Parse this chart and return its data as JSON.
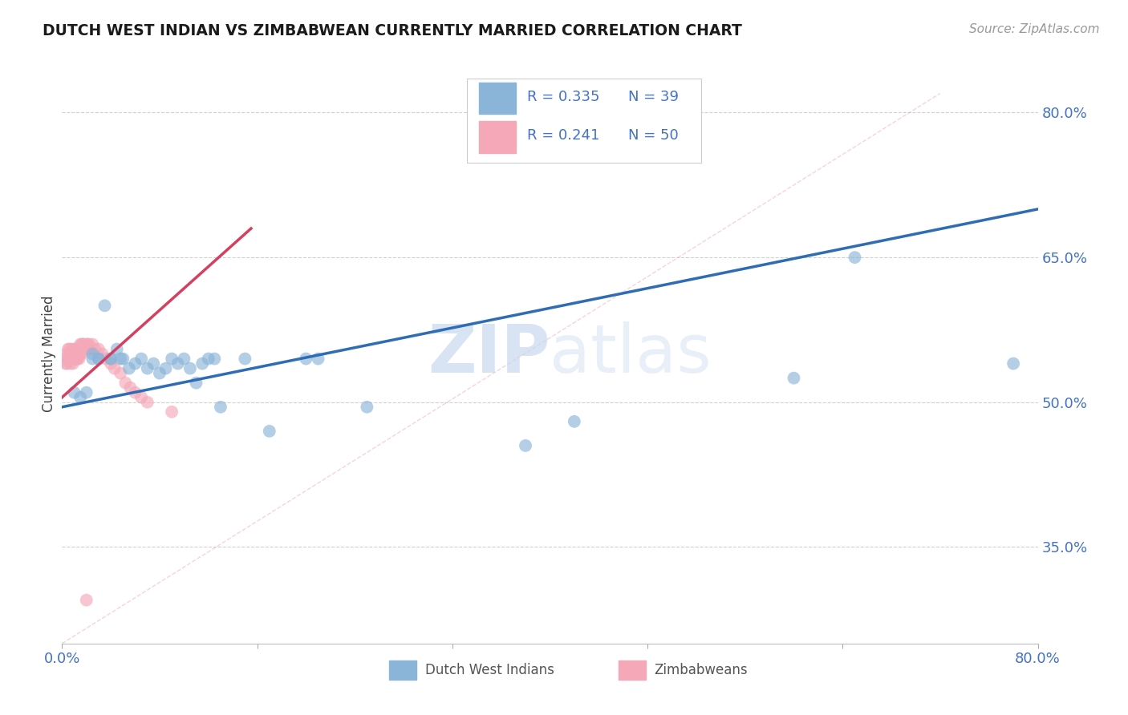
{
  "title": "DUTCH WEST INDIAN VS ZIMBABWEAN CURRENTLY MARRIED CORRELATION CHART",
  "source": "Source: ZipAtlas.com",
  "ylabel": "Currently Married",
  "xlim": [
    0.0,
    0.8
  ],
  "ylim": [
    0.25,
    0.85
  ],
  "yticks": [
    0.35,
    0.5,
    0.65,
    0.8
  ],
  "ytick_labels": [
    "35.0%",
    "50.0%",
    "65.0%",
    "80.0%"
  ],
  "xticks": [
    0.0,
    0.16,
    0.32,
    0.48,
    0.64,
    0.8
  ],
  "title_color": "#1a1a1a",
  "source_color": "#999999",
  "axis_tick_color": "#4472c4",
  "blue_color": "#8ab4d8",
  "pink_color": "#f4a8b8",
  "blue_line_color": "#2e6db4",
  "pink_line_color": "#d44060",
  "legend_blue_R": "R = 0.335",
  "legend_blue_N": "N = 39",
  "legend_pink_R": "R = 0.241",
  "legend_pink_N": "N = 50",
  "blue_scatter_x": [
    0.01,
    0.015,
    0.02,
    0.025,
    0.025,
    0.03,
    0.03,
    0.035,
    0.04,
    0.04,
    0.045,
    0.048,
    0.05,
    0.055,
    0.06,
    0.065,
    0.07,
    0.075,
    0.08,
    0.085,
    0.09,
    0.095,
    0.1,
    0.105,
    0.11,
    0.115,
    0.12,
    0.125,
    0.13,
    0.15,
    0.17,
    0.2,
    0.21,
    0.25,
    0.38,
    0.42,
    0.6,
    0.65,
    0.78
  ],
  "blue_scatter_y": [
    0.51,
    0.505,
    0.51,
    0.55,
    0.545,
    0.545,
    0.545,
    0.6,
    0.545,
    0.545,
    0.555,
    0.545,
    0.545,
    0.535,
    0.54,
    0.545,
    0.535,
    0.54,
    0.53,
    0.535,
    0.545,
    0.54,
    0.545,
    0.535,
    0.52,
    0.54,
    0.545,
    0.545,
    0.495,
    0.545,
    0.47,
    0.545,
    0.545,
    0.495,
    0.455,
    0.48,
    0.525,
    0.65,
    0.54
  ],
  "pink_scatter_x": [
    0.002,
    0.003,
    0.004,
    0.004,
    0.005,
    0.005,
    0.006,
    0.006,
    0.007,
    0.007,
    0.008,
    0.008,
    0.009,
    0.009,
    0.01,
    0.01,
    0.011,
    0.011,
    0.012,
    0.012,
    0.013,
    0.013,
    0.014,
    0.014,
    0.015,
    0.015,
    0.016,
    0.016,
    0.017,
    0.018,
    0.019,
    0.02,
    0.021,
    0.022,
    0.023,
    0.025,
    0.027,
    0.03,
    0.033,
    0.036,
    0.04,
    0.043,
    0.048,
    0.052,
    0.056,
    0.06,
    0.065,
    0.07,
    0.09,
    0.02
  ],
  "pink_scatter_y": [
    0.545,
    0.54,
    0.55,
    0.54,
    0.555,
    0.545,
    0.555,
    0.545,
    0.55,
    0.54,
    0.555,
    0.545,
    0.55,
    0.54,
    0.555,
    0.545,
    0.555,
    0.545,
    0.555,
    0.545,
    0.555,
    0.545,
    0.555,
    0.545,
    0.56,
    0.55,
    0.56,
    0.55,
    0.56,
    0.56,
    0.555,
    0.56,
    0.56,
    0.56,
    0.555,
    0.56,
    0.555,
    0.555,
    0.55,
    0.545,
    0.54,
    0.535,
    0.53,
    0.52,
    0.515,
    0.51,
    0.505,
    0.5,
    0.49,
    0.295
  ],
  "blue_line_x": [
    0.0,
    0.8
  ],
  "blue_line_y": [
    0.495,
    0.7
  ],
  "pink_line_x": [
    0.0,
    0.155
  ],
  "pink_line_y": [
    0.505,
    0.68
  ],
  "diag_line_x": [
    0.0,
    0.72
  ],
  "diag_line_y": [
    0.25,
    0.82
  ],
  "watermark_zip": "ZIP",
  "watermark_atlas": "atlas",
  "legend_label_blue": "Dutch West Indians",
  "legend_label_pink": "Zimbabweans",
  "background_color": "#ffffff",
  "grid_color": "#cccccc"
}
